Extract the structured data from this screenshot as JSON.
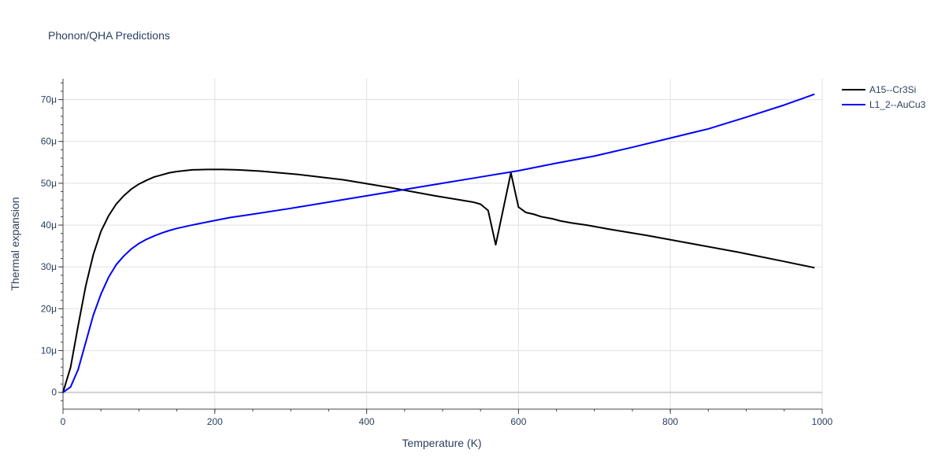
{
  "chart_data": {
    "type": "line",
    "title": "Phonon/QHA Predictions",
    "xlabel": "Temperature (K)",
    "ylabel": "Thermal expansion",
    "xlim": [
      0,
      1000
    ],
    "ylim": [
      -4e-06,
      7.5e-05
    ],
    "x_ticks": [
      0,
      200,
      400,
      600,
      800,
      1000
    ],
    "x_tick_labels": [
      "0",
      "200",
      "400",
      "600",
      "800",
      "1000"
    ],
    "y_ticks": [
      0,
      1e-05,
      2e-05,
      3e-05,
      4e-05,
      5e-05,
      6e-05,
      7e-05
    ],
    "y_tick_labels": [
      "0",
      "10μ",
      "20μ",
      "30μ",
      "40μ",
      "50μ",
      "60μ",
      "70μ"
    ],
    "grid": true,
    "legend_position": "top-right",
    "series": [
      {
        "name": "A15--Cr3Si",
        "color": "#000000",
        "x": [
          0,
          10,
          20,
          30,
          40,
          50,
          60,
          70,
          80,
          90,
          100,
          110,
          120,
          130,
          140,
          150,
          170,
          190,
          210,
          230,
          260,
          310,
          370,
          430,
          490,
          540,
          550,
          560,
          570,
          590,
          600,
          610,
          620,
          630,
          645,
          655,
          670,
          690,
          720,
          770,
          830,
          890,
          950,
          990
        ],
        "y": [
          0,
          6e-06,
          1.6e-05,
          2.55e-05,
          3.3e-05,
          3.85e-05,
          4.22e-05,
          4.5e-05,
          4.7e-05,
          4.86e-05,
          4.98e-05,
          5.07e-05,
          5.15e-05,
          5.2e-05,
          5.25e-05,
          5.28e-05,
          5.32e-05,
          5.33e-05,
          5.33e-05,
          5.32e-05,
          5.29e-05,
          5.21e-05,
          5.08e-05,
          4.9e-05,
          4.7e-05,
          4.55e-05,
          4.5e-05,
          4.35e-05,
          3.53e-05,
          5.25e-05,
          4.43e-05,
          4.3e-05,
          4.26e-05,
          4.2e-05,
          4.15e-05,
          4.1e-05,
          4.05e-05,
          4e-05,
          3.9e-05,
          3.75e-05,
          3.55e-05,
          3.35e-05,
          3.13e-05,
          2.98e-05
        ]
      },
      {
        "name": "L1_2--AuCu3",
        "color": "#0000ff",
        "x": [
          0,
          10,
          20,
          30,
          40,
          50,
          60,
          70,
          80,
          90,
          100,
          110,
          120,
          130,
          140,
          150,
          170,
          200,
          220,
          250,
          300,
          350,
          400,
          450,
          500,
          550,
          600,
          650,
          700,
          750,
          800,
          850,
          900,
          950,
          990
        ],
        "y": [
          0,
          1.3e-06,
          5.5e-06,
          1.2e-05,
          1.85e-05,
          2.35e-05,
          2.75e-05,
          3.05e-05,
          3.26e-05,
          3.43e-05,
          3.56e-05,
          3.66e-05,
          3.74e-05,
          3.81e-05,
          3.87e-05,
          3.92e-05,
          4e-05,
          4.11e-05,
          4.18e-05,
          4.26e-05,
          4.4e-05,
          4.55e-05,
          4.7e-05,
          4.85e-05,
          5e-05,
          5.15e-05,
          5.3e-05,
          5.48e-05,
          5.65e-05,
          5.86e-05,
          6.08e-05,
          6.3e-05,
          6.58e-05,
          6.87e-05,
          7.13e-05
        ]
      }
    ]
  }
}
